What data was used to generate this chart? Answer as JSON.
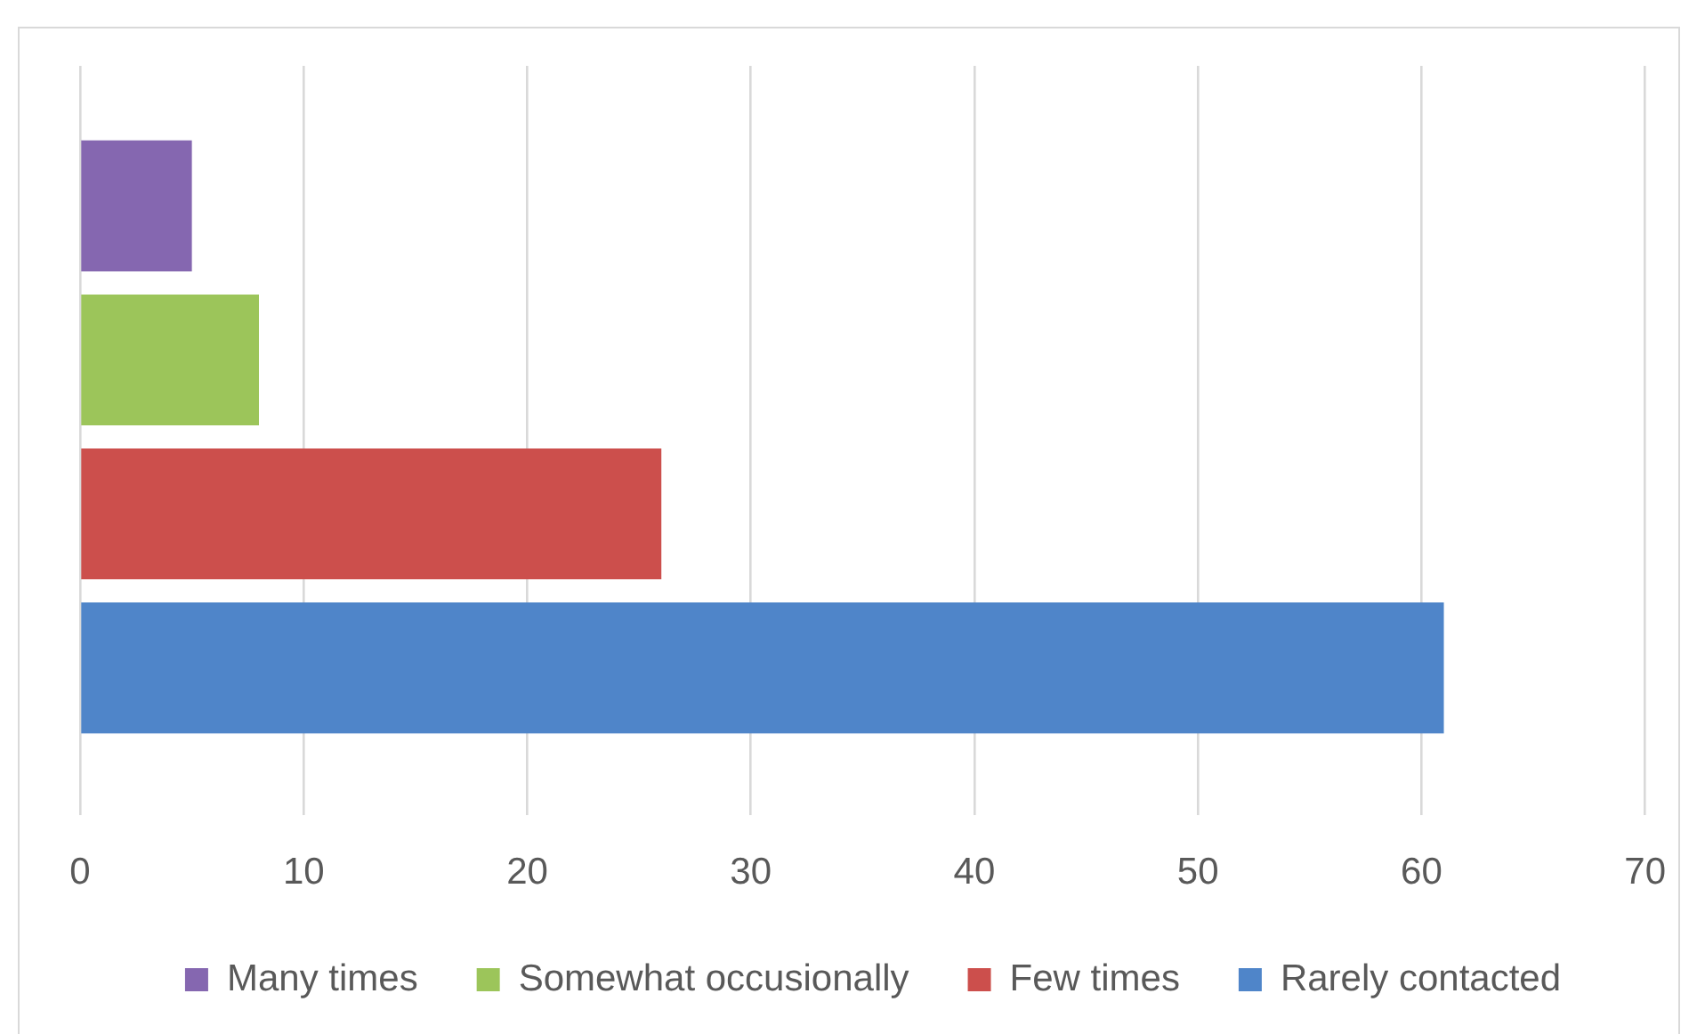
{
  "chart_data": {
    "type": "bar",
    "orientation": "horizontal",
    "categories": [
      null
    ],
    "series": [
      {
        "name": "Many times",
        "color": "#8567b0",
        "values": [
          5
        ]
      },
      {
        "name": "Somewhat occusionally",
        "color": "#9cc55a",
        "values": [
          8
        ]
      },
      {
        "name": "Few times",
        "color": "#cc4f4c",
        "values": [
          26
        ]
      },
      {
        "name": "Rarely contacted",
        "color": "#4f85c9",
        "values": [
          61
        ]
      }
    ],
    "xlim": [
      0,
      70
    ],
    "xticks": [
      0,
      10,
      20,
      30,
      40,
      50,
      60,
      70
    ],
    "grid": "x",
    "legend": "bottom",
    "tick_labels": "x"
  }
}
